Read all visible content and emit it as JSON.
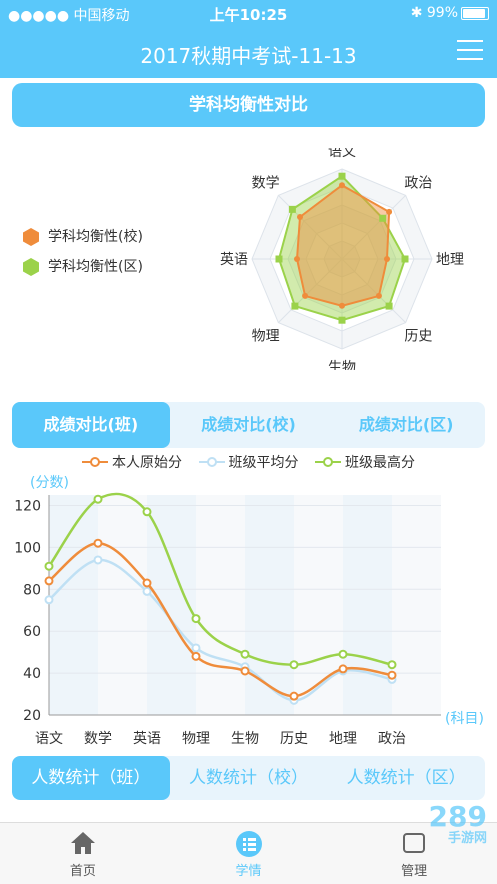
{
  "status": {
    "carrier": "●●●●● 中国移动",
    "time": "上午10:25",
    "battery": "99%"
  },
  "nav": {
    "title": "2017秋期中考试-11-13"
  },
  "section1": {
    "title": "学科均衡性对比"
  },
  "radar": {
    "axes": [
      "语文",
      "政治",
      "地理",
      "历史",
      "生物",
      "物理",
      "英语",
      "数学"
    ],
    "legend": [
      "学科均衡性(校)",
      "学科均衡性(区)"
    ],
    "colors": {
      "school": "#ef8c3b",
      "district": "#9bd24a"
    },
    "school": [
      0.82,
      0.74,
      0.5,
      0.58,
      0.52,
      0.58,
      0.5,
      0.66
    ],
    "district": [
      0.92,
      0.64,
      0.7,
      0.74,
      0.68,
      0.74,
      0.7,
      0.78
    ]
  },
  "tabs1": [
    "成绩对比(班)",
    "成绩对比(校)",
    "成绩对比(区)"
  ],
  "chart_data": {
    "type": "line",
    "categories": [
      "语文",
      "数学",
      "英语",
      "物理",
      "生物",
      "历史",
      "地理",
      "政治"
    ],
    "series": [
      {
        "name": "本人原始分",
        "color": "#ef8c3b",
        "values": [
          84,
          102,
          83,
          48,
          41,
          29,
          42,
          39
        ]
      },
      {
        "name": "班级平均分",
        "color": "#bfe0f4",
        "values": [
          75,
          94,
          79,
          52,
          43,
          27,
          41,
          37
        ]
      },
      {
        "name": "班级最高分",
        "color": "#9bd24a",
        "values": [
          91,
          123,
          117,
          66,
          49,
          44,
          49,
          44
        ]
      }
    ],
    "ylabel": "(分数)",
    "xlabel": "(科目)",
    "yticks": [
      20,
      40,
      60,
      80,
      100,
      120
    ],
    "ylim": [
      20,
      125
    ]
  },
  "tabs2": [
    "人数统计（班）",
    "人数统计（校）",
    "人数统计（区）"
  ],
  "bottom": [
    "首页",
    "学情",
    "管理"
  ],
  "watermark": {
    "main": "289",
    "sub": "手游网"
  }
}
